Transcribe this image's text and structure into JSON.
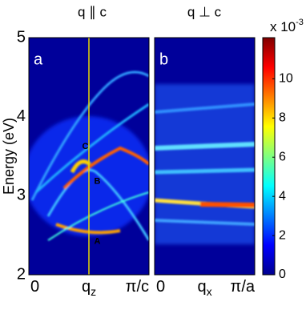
{
  "chart_data": [
    {
      "type": "heatmap",
      "title": "q ∥ c",
      "panel_label": "a",
      "ylabel": "Energy (eV)",
      "xlim": [
        0,
        1
      ],
      "ylim": [
        2,
        5
      ],
      "yticks": [
        2,
        3,
        4,
        5
      ],
      "xticks": [
        {
          "value": 0,
          "label": "0"
        },
        {
          "value": 0.5,
          "label": "q",
          "sub": "z"
        },
        {
          "value": 1,
          "label": "π/c"
        }
      ],
      "vline": 0.5,
      "vline_color": "#e8d800",
      "annotations": [
        {
          "text": "C",
          "x": 0.47,
          "y": 3.62
        },
        {
          "text": "B",
          "x": 0.57,
          "y": 3.18
        },
        {
          "text": "A",
          "x": 0.57,
          "y": 2.42
        }
      ]
    },
    {
      "type": "heatmap",
      "title": "q ⊥ c",
      "panel_label": "b",
      "xlim": [
        0,
        1
      ],
      "ylim": [
        2,
        5
      ],
      "xticks": [
        {
          "value": 0,
          "label": "0"
        },
        {
          "value": 0.5,
          "label": "q",
          "sub": "x"
        },
        {
          "value": 1,
          "label": "π/a"
        }
      ]
    },
    {
      "type": "colorbar",
      "label": "x 10",
      "label_sup": "-3",
      "zlim": [
        0,
        12.1
      ],
      "ticks": [
        0,
        2,
        4,
        6,
        8,
        10
      ]
    }
  ]
}
